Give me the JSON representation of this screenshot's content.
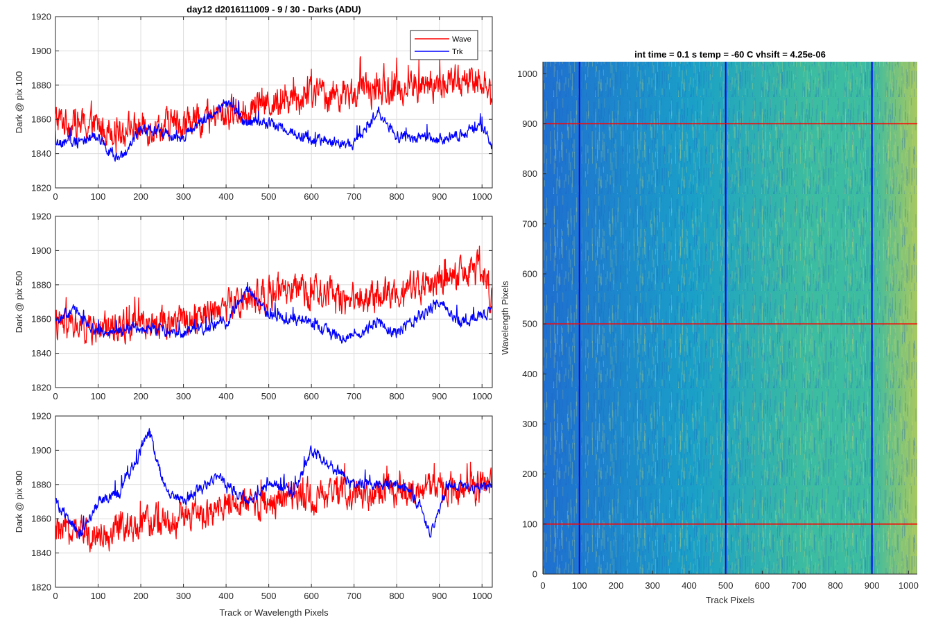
{
  "chart_data": [
    {
      "type": "line",
      "title": "day12 d2016111009 - 9 / 30 - Darks (ADU)",
      "xlabel": "",
      "ylabel": "Dark @ pix 100",
      "xlim": [
        0,
        1024
      ],
      "ylim": [
        1820,
        1920
      ],
      "xticks": [
        0,
        100,
        200,
        300,
        400,
        500,
        600,
        700,
        800,
        900,
        1000
      ],
      "yticks": [
        1820,
        1840,
        1860,
        1880,
        1900,
        1920
      ],
      "grid": true,
      "legend": {
        "position": "top-right",
        "entries": [
          "Wave",
          "Trk"
        ]
      },
      "series": [
        {
          "name": "Wave",
          "color": "#ff0000",
          "x": [
            0,
            100,
            200,
            300,
            400,
            500,
            600,
            700,
            800,
            900,
            1000,
            1023
          ],
          "values": [
            1860,
            1855,
            1855,
            1858,
            1863,
            1870,
            1875,
            1875,
            1878,
            1880,
            1885,
            1870
          ]
        },
        {
          "name": "Trk",
          "color": "#0000ff",
          "x": [
            0,
            100,
            150,
            200,
            300,
            400,
            450,
            500,
            600,
            700,
            760,
            800,
            900,
            1000,
            1023
          ],
          "values": [
            1845,
            1850,
            1835,
            1855,
            1850,
            1870,
            1858,
            1858,
            1848,
            1845,
            1865,
            1850,
            1848,
            1855,
            1845
          ]
        }
      ]
    },
    {
      "type": "line",
      "title": "",
      "xlabel": "",
      "ylabel": "Dark @ pix 500",
      "xlim": [
        0,
        1024
      ],
      "ylim": [
        1820,
        1920
      ],
      "xticks": [
        0,
        100,
        200,
        300,
        400,
        500,
        600,
        700,
        800,
        900,
        1000
      ],
      "yticks": [
        1820,
        1840,
        1860,
        1880,
        1900,
        1920
      ],
      "grid": true,
      "series": [
        {
          "name": "Wave",
          "color": "#ff0000",
          "x": [
            0,
            100,
            200,
            300,
            400,
            500,
            600,
            700,
            800,
            900,
            1000,
            1023
          ],
          "values": [
            1856,
            1855,
            1858,
            1860,
            1868,
            1875,
            1875,
            1872,
            1876,
            1882,
            1888,
            1875
          ]
        },
        {
          "name": "Trk",
          "color": "#0000ff",
          "x": [
            0,
            50,
            100,
            200,
            300,
            400,
            450,
            500,
            600,
            680,
            750,
            800,
            850,
            900,
            950,
            1000,
            1023
          ],
          "values": [
            1860,
            1865,
            1852,
            1855,
            1852,
            1858,
            1878,
            1862,
            1858,
            1848,
            1858,
            1852,
            1860,
            1870,
            1858,
            1862,
            1865
          ]
        }
      ]
    },
    {
      "type": "line",
      "title": "",
      "xlabel": "Track or Wavelength Pixels",
      "ylabel": "Dark @ pix 900",
      "xlim": [
        0,
        1024
      ],
      "ylim": [
        1820,
        1920
      ],
      "xticks": [
        0,
        100,
        200,
        300,
        400,
        500,
        600,
        700,
        800,
        900,
        1000
      ],
      "yticks": [
        1820,
        1840,
        1860,
        1880,
        1900,
        1920
      ],
      "grid": true,
      "series": [
        {
          "name": "Wave",
          "color": "#ff0000",
          "x": [
            0,
            100,
            200,
            300,
            400,
            500,
            600,
            700,
            800,
            900,
            1000,
            1023
          ],
          "values": [
            1852,
            1852,
            1856,
            1860,
            1866,
            1870,
            1872,
            1875,
            1876,
            1878,
            1880,
            1880
          ]
        },
        {
          "name": "Trk",
          "color": "#0000ff",
          "x": [
            0,
            60,
            100,
            150,
            220,
            260,
            300,
            380,
            450,
            500,
            560,
            600,
            700,
            800,
            850,
            880,
            920,
            1000,
            1023
          ],
          "values": [
            1870,
            1850,
            1870,
            1875,
            1910,
            1875,
            1870,
            1885,
            1870,
            1880,
            1875,
            1900,
            1880,
            1880,
            1870,
            1850,
            1880,
            1878,
            1880
          ]
        }
      ]
    },
    {
      "type": "heatmap",
      "title": "int time = 0.1 s   temp = -60 C   vhsift = 4.25e-06",
      "xlabel": "Track Pixels",
      "ylabel": "Wavelength Pixels",
      "xlim": [
        0,
        1024
      ],
      "ylim": [
        0,
        1024
      ],
      "xticks": [
        0,
        100,
        200,
        300,
        400,
        500,
        600,
        700,
        800,
        900,
        1000
      ],
      "yticks": [
        0,
        100,
        200,
        300,
        400,
        500,
        600,
        700,
        800,
        900,
        1000
      ],
      "colormap": [
        "#1f6fd0",
        "#1aa0c8",
        "#3cbca0",
        "#a8c860"
      ],
      "vertical_markers": {
        "color": "#0000ff",
        "x": [
          100,
          500,
          900
        ]
      },
      "horizontal_markers": {
        "color": "#ff0000",
        "y": [
          100,
          500,
          900
        ]
      }
    }
  ]
}
